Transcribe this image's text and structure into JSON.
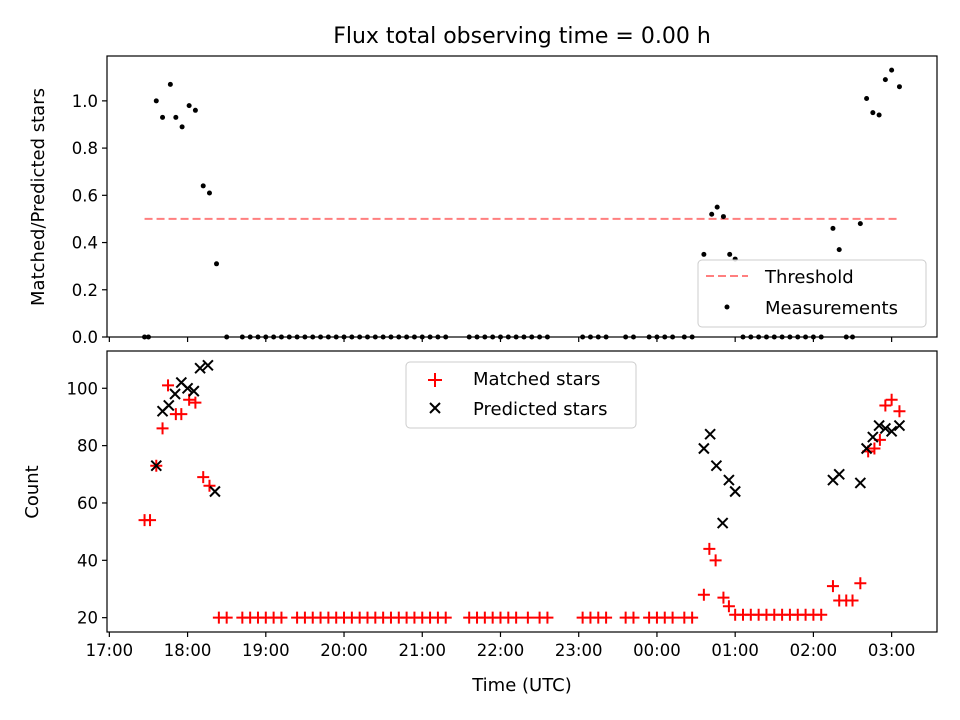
{
  "chart_data": [
    {
      "type": "scatter",
      "title": "Flux total observing time = 0.00 h",
      "xlabel": "",
      "ylabel": "Matched/Predicted stars",
      "ylim": [
        0,
        1.19
      ],
      "yticks": [
        "0.0",
        "0.2",
        "0.4",
        "0.6",
        "0.8",
        "1.0"
      ],
      "legend_position": "lower-right",
      "threshold": {
        "name": "Threshold",
        "value": 0.5,
        "x_start": 17.45,
        "x_end": 27.1,
        "color": "#ff7f7f",
        "style": "dashed"
      },
      "series": [
        {
          "name": "Measurements",
          "color": "#000000",
          "marker": "dot",
          "points": [
            [
              17.45,
              0
            ],
            [
              17.5,
              0
            ],
            [
              17.6,
              1.0
            ],
            [
              17.68,
              0.93
            ],
            [
              17.78,
              1.07
            ],
            [
              17.85,
              0.93
            ],
            [
              17.93,
              0.89
            ],
            [
              18.02,
              0.98
            ],
            [
              18.1,
              0.96
            ],
            [
              18.2,
              0.64
            ],
            [
              18.28,
              0.61
            ],
            [
              18.37,
              0.31
            ],
            [
              18.5,
              0
            ],
            [
              18.7,
              0
            ],
            [
              18.8,
              0
            ],
            [
              18.9,
              0
            ],
            [
              19.0,
              0
            ],
            [
              19.1,
              0
            ],
            [
              19.2,
              0
            ],
            [
              19.3,
              0
            ],
            [
              19.4,
              0
            ],
            [
              19.5,
              0
            ],
            [
              19.6,
              0
            ],
            [
              19.7,
              0
            ],
            [
              19.8,
              0
            ],
            [
              19.9,
              0
            ],
            [
              20.0,
              0
            ],
            [
              20.1,
              0
            ],
            [
              20.2,
              0
            ],
            [
              20.3,
              0
            ],
            [
              20.4,
              0
            ],
            [
              20.5,
              0
            ],
            [
              20.6,
              0
            ],
            [
              20.7,
              0
            ],
            [
              20.8,
              0
            ],
            [
              20.9,
              0
            ],
            [
              21.0,
              0
            ],
            [
              21.1,
              0
            ],
            [
              21.2,
              0
            ],
            [
              21.3,
              0
            ],
            [
              21.6,
              0
            ],
            [
              21.7,
              0
            ],
            [
              21.8,
              0
            ],
            [
              21.9,
              0
            ],
            [
              22.0,
              0
            ],
            [
              22.1,
              0
            ],
            [
              22.2,
              0
            ],
            [
              22.3,
              0
            ],
            [
              22.4,
              0
            ],
            [
              22.5,
              0
            ],
            [
              22.6,
              0
            ],
            [
              23.05,
              0
            ],
            [
              23.15,
              0
            ],
            [
              23.25,
              0
            ],
            [
              23.35,
              0
            ],
            [
              23.6,
              0
            ],
            [
              23.7,
              0
            ],
            [
              23.9,
              0
            ],
            [
              24.0,
              0
            ],
            [
              24.1,
              0
            ],
            [
              24.2,
              0
            ],
            [
              24.35,
              0
            ],
            [
              24.45,
              0
            ],
            [
              24.6,
              0.35
            ],
            [
              24.7,
              0.52
            ],
            [
              24.77,
              0.55
            ],
            [
              24.85,
              0.51
            ],
            [
              24.93,
              0.35
            ],
            [
              25.0,
              0.33
            ],
            [
              25.1,
              0
            ],
            [
              25.2,
              0
            ],
            [
              25.3,
              0
            ],
            [
              25.4,
              0
            ],
            [
              25.5,
              0
            ],
            [
              25.6,
              0
            ],
            [
              25.7,
              0
            ],
            [
              25.8,
              0
            ],
            [
              25.9,
              0
            ],
            [
              26.0,
              0
            ],
            [
              26.1,
              0
            ],
            [
              26.25,
              0.46
            ],
            [
              26.33,
              0.37
            ],
            [
              26.42,
              0
            ],
            [
              26.5,
              0
            ],
            [
              26.6,
              0.48
            ],
            [
              26.68,
              1.01
            ],
            [
              26.76,
              0.95
            ],
            [
              26.84,
              0.94
            ],
            [
              26.92,
              1.09
            ],
            [
              27.0,
              1.13
            ],
            [
              27.1,
              1.06
            ]
          ]
        }
      ]
    },
    {
      "type": "scatter",
      "title": "",
      "xlabel": "Time (UTC)",
      "ylabel": "Count",
      "xlim": [
        16.97,
        27.58
      ],
      "ylim": [
        15,
        113
      ],
      "x_tick_values": [
        17,
        18,
        19,
        20,
        21,
        22,
        23,
        24,
        25,
        26,
        27
      ],
      "x_tick_labels": [
        "17:00",
        "18:00",
        "19:00",
        "20:00",
        "21:00",
        "22:00",
        "23:00",
        "00:00",
        "01:00",
        "02:00",
        "03:00"
      ],
      "yticks": [
        "20",
        "40",
        "60",
        "80",
        "100"
      ],
      "legend_position": "top-center",
      "series": [
        {
          "name": "Matched stars",
          "color": "#ff0000",
          "marker": "plus",
          "points": [
            [
              17.45,
              54
            ],
            [
              17.52,
              54
            ],
            [
              17.6,
              73
            ],
            [
              17.68,
              86
            ],
            [
              17.75,
              101
            ],
            [
              17.85,
              91
            ],
            [
              17.92,
              91
            ],
            [
              18.02,
              96
            ],
            [
              18.1,
              95
            ],
            [
              18.2,
              69
            ],
            [
              18.28,
              66
            ],
            [
              18.4,
              20
            ],
            [
              18.5,
              20
            ],
            [
              18.7,
              20
            ],
            [
              18.8,
              20
            ],
            [
              18.9,
              20
            ],
            [
              19.0,
              20
            ],
            [
              19.1,
              20
            ],
            [
              19.2,
              20
            ],
            [
              19.4,
              20
            ],
            [
              19.5,
              20
            ],
            [
              19.6,
              20
            ],
            [
              19.7,
              20
            ],
            [
              19.8,
              20
            ],
            [
              19.9,
              20
            ],
            [
              20.0,
              20
            ],
            [
              20.1,
              20
            ],
            [
              20.2,
              20
            ],
            [
              20.3,
              20
            ],
            [
              20.4,
              20
            ],
            [
              20.5,
              20
            ],
            [
              20.6,
              20
            ],
            [
              20.7,
              20
            ],
            [
              20.8,
              20
            ],
            [
              20.9,
              20
            ],
            [
              21.0,
              20
            ],
            [
              21.1,
              20
            ],
            [
              21.2,
              20
            ],
            [
              21.3,
              20
            ],
            [
              21.6,
              20
            ],
            [
              21.7,
              20
            ],
            [
              21.8,
              20
            ],
            [
              21.9,
              20
            ],
            [
              22.0,
              20
            ],
            [
              22.1,
              20
            ],
            [
              22.2,
              20
            ],
            [
              22.35,
              20
            ],
            [
              22.5,
              20
            ],
            [
              22.6,
              20
            ],
            [
              23.05,
              20
            ],
            [
              23.15,
              20
            ],
            [
              23.25,
              20
            ],
            [
              23.35,
              20
            ],
            [
              23.6,
              20
            ],
            [
              23.7,
              20
            ],
            [
              23.9,
              20
            ],
            [
              24.0,
              20
            ],
            [
              24.1,
              20
            ],
            [
              24.2,
              20
            ],
            [
              24.35,
              20
            ],
            [
              24.45,
              20
            ],
            [
              24.6,
              28
            ],
            [
              24.67,
              44
            ],
            [
              24.75,
              40
            ],
            [
              24.85,
              27
            ],
            [
              24.92,
              24
            ],
            [
              25.0,
              21
            ],
            [
              25.1,
              21
            ],
            [
              25.2,
              21
            ],
            [
              25.3,
              21
            ],
            [
              25.4,
              21
            ],
            [
              25.5,
              21
            ],
            [
              25.6,
              21
            ],
            [
              25.7,
              21
            ],
            [
              25.8,
              21
            ],
            [
              25.9,
              21
            ],
            [
              26.0,
              21
            ],
            [
              26.1,
              21
            ],
            [
              26.25,
              31
            ],
            [
              26.33,
              26
            ],
            [
              26.42,
              26
            ],
            [
              26.5,
              26
            ],
            [
              26.6,
              32
            ],
            [
              26.7,
              78
            ],
            [
              26.78,
              79
            ],
            [
              26.85,
              82
            ],
            [
              26.92,
              94
            ],
            [
              27.0,
              96
            ],
            [
              27.1,
              92
            ]
          ]
        },
        {
          "name": "Predicted stars",
          "color": "#000000",
          "marker": "x",
          "points": [
            [
              17.6,
              73
            ],
            [
              17.68,
              92
            ],
            [
              17.76,
              94
            ],
            [
              17.84,
              98
            ],
            [
              17.92,
              102
            ],
            [
              18.0,
              100
            ],
            [
              18.08,
              99
            ],
            [
              18.16,
              107
            ],
            [
              18.26,
              108
            ],
            [
              18.35,
              64
            ],
            [
              24.6,
              79
            ],
            [
              24.68,
              84
            ],
            [
              24.76,
              73
            ],
            [
              24.84,
              53
            ],
            [
              24.92,
              68
            ],
            [
              25.0,
              64
            ],
            [
              26.25,
              68
            ],
            [
              26.33,
              70
            ],
            [
              26.6,
              67
            ],
            [
              26.68,
              79
            ],
            [
              26.76,
              83
            ],
            [
              26.84,
              87
            ],
            [
              26.92,
              86
            ],
            [
              27.0,
              85
            ],
            [
              27.1,
              87
            ]
          ]
        }
      ]
    }
  ]
}
